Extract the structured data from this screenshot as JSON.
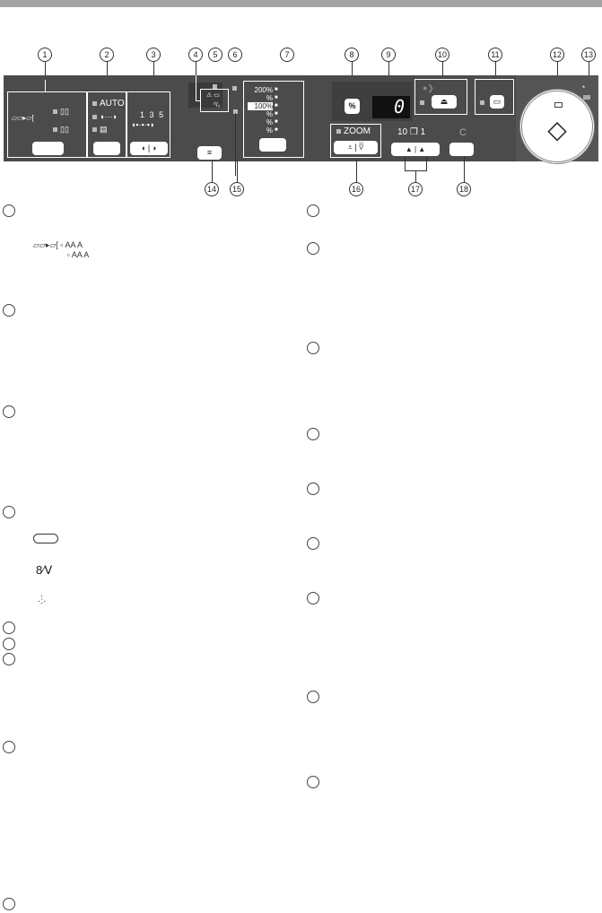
{
  "callouts": {
    "n1": "1",
    "n2": "2",
    "n3": "3",
    "n4": "4",
    "n5": "5",
    "n6": "6",
    "n7": "7",
    "n8": "8",
    "n9": "9",
    "n10": "10",
    "n11": "11",
    "n12": "12",
    "n13": "13",
    "n14": "14",
    "n15": "15",
    "n16": "16",
    "n17": "17",
    "n18": "18"
  },
  "panel": {
    "exposure_mode": {
      "auto": "AUTO",
      "text_photo": "◖···◗"
    },
    "exposure_levels": {
      "l1": "1",
      "l3": "3",
      "l5": "5"
    },
    "ratio_presets": {
      "r200": "200%",
      "r1": "%",
      "r100": "100%",
      "r2": "%",
      "r3": "%",
      "r4": "%"
    },
    "ratio_button": "%",
    "display_value": "0",
    "zoom_label": "ZOOM",
    "copies_label_10": "10",
    "copies_label_1": "1",
    "clear_label": "C",
    "up_arrow": "▲",
    "start_icon": "◇"
  },
  "icons": [
    "two-sided-copy-icon",
    "exposure-auto-icon",
    "paper-feed-indicator-icon",
    "toner-icon",
    "drum-icon",
    "misfeed-icon",
    "developer-icon",
    "start-icon",
    "power-save-icon",
    "menu-icon",
    "scan-icon",
    "print-icon"
  ]
}
